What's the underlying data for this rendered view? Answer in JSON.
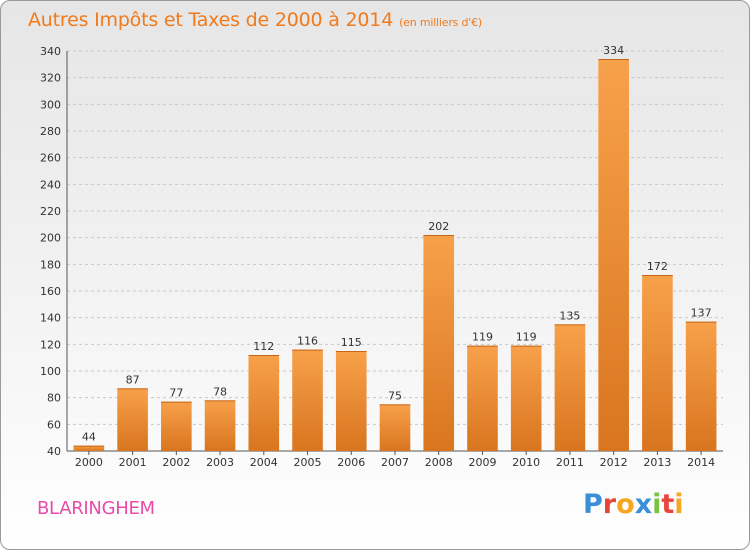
{
  "header": {
    "title": "Autres Impôts et Taxes de 2000 à 2014",
    "subtitle": "(en milliers d'€)"
  },
  "footer": {
    "town": "BLARINGHEM",
    "logo_text": "Proxiti",
    "logo_colors": [
      "#3a8fd8",
      "#e8453c",
      "#f5a623",
      "#3a8fd8",
      "#7cc242",
      "#e8453c",
      "#f5a623"
    ]
  },
  "colors": {
    "accent": "#f07a1c",
    "town": "#ea4ba8",
    "bar_light": "#f7a14a",
    "bar_dark": "#d9751f",
    "grid": "#c8c8c8"
  },
  "chart_data": {
    "type": "bar",
    "title": "Autres Impôts et Taxes de 2000 à 2014",
    "subtitle": "(en milliers d'€)",
    "xlabel": "",
    "ylabel": "",
    "categories": [
      "2000",
      "2001",
      "2002",
      "2003",
      "2004",
      "2005",
      "2006",
      "2007",
      "2008",
      "2009",
      "2010",
      "2011",
      "2012",
      "2013",
      "2014"
    ],
    "values": [
      44,
      87,
      77,
      78,
      112,
      116,
      115,
      75,
      202,
      119,
      119,
      135,
      334,
      172,
      137
    ],
    "ylim": [
      40,
      340
    ],
    "yticks": [
      40,
      60,
      80,
      100,
      120,
      140,
      160,
      180,
      200,
      220,
      240,
      260,
      280,
      300,
      320,
      340
    ],
    "grid": true,
    "legend": "none"
  }
}
